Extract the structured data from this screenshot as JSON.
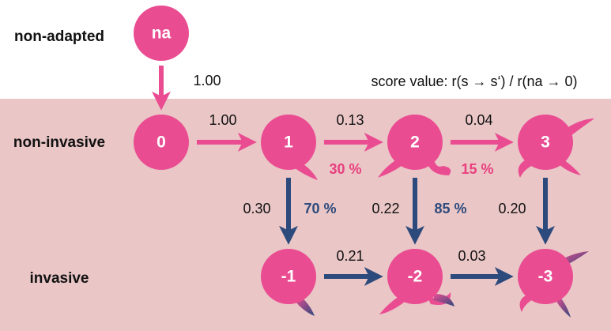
{
  "row_labels": [
    "non-adapted",
    "non-invasive",
    "invasive"
  ],
  "score_note": "score value:  r(s → s‘) / r(na → 0)",
  "nodes": [
    {
      "label": "na"
    },
    {
      "label": "0"
    },
    {
      "label": "1"
    },
    {
      "label": "2"
    },
    {
      "label": "3"
    },
    {
      "label": "-1"
    },
    {
      "label": "-2"
    },
    {
      "label": "-3"
    }
  ],
  "edges": [
    {
      "from": "na",
      "to": "0",
      "label": "1.00"
    },
    {
      "from": "0",
      "to": "1",
      "label": "1.00"
    },
    {
      "from": "1",
      "to": "2",
      "label": "0.13"
    },
    {
      "from": "2",
      "to": "3",
      "label": "0.04"
    },
    {
      "from": "1",
      "to": "-1",
      "label": "0.30"
    },
    {
      "from": "2",
      "to": "-2",
      "label": "0.22"
    },
    {
      "from": "3",
      "to": "-3",
      "label": "0.20"
    },
    {
      "from": "-1",
      "to": "-2",
      "label": "0.21"
    },
    {
      "from": "-2",
      "to": "-3",
      "label": "0.03"
    }
  ],
  "percentages": [
    {
      "text": "30 %",
      "color": "#e8407f"
    },
    {
      "text": "70 %",
      "color": "#2d4a7c"
    },
    {
      "text": "15 %",
      "color": "#e8407f"
    },
    {
      "text": "85 %",
      "color": "#2d4a7c"
    }
  ]
}
